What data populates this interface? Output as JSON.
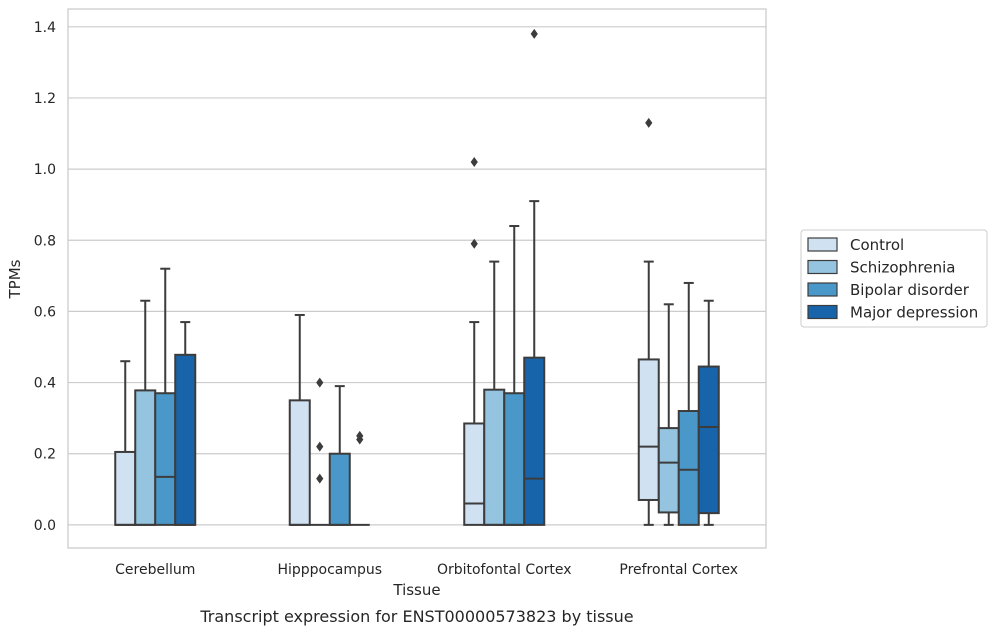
{
  "chart_data": {
    "type": "box",
    "caption": "Transcript expression for ENST00000573823 by tissue",
    "xlabel": "Tissue",
    "ylabel": "TPMs",
    "ylim": [
      -0.065,
      1.45
    ],
    "yticks": [
      0.0,
      0.2,
      0.4,
      0.6,
      0.8,
      1.0,
      1.2,
      1.4
    ],
    "ytick_labels": [
      "0.0",
      "0.2",
      "0.4",
      "0.6",
      "0.8",
      "1.0",
      "1.2",
      "1.4"
    ],
    "grid": true,
    "legend_placement": "right",
    "categories": [
      "Cerebellum",
      "Hipppocampus",
      "Orbitofontal Cortex",
      "Prefrontal Cortex"
    ],
    "series": [
      {
        "name": "Control",
        "color": "#d0e1f2",
        "boxes": [
          {
            "q1": 0.0,
            "median": 0.0,
            "q3": 0.205,
            "whisker_low": 0.0,
            "whisker_high": 0.46,
            "outliers": []
          },
          {
            "q1": 0.0,
            "median": 0.0,
            "q3": 0.35,
            "whisker_low": 0.0,
            "whisker_high": 0.59,
            "outliers": []
          },
          {
            "q1": 0.0,
            "median": 0.06,
            "q3": 0.285,
            "whisker_low": 0.0,
            "whisker_high": 0.57,
            "outliers": [
              0.79,
              1.02
            ]
          },
          {
            "q1": 0.07,
            "median": 0.22,
            "q3": 0.465,
            "whisker_low": 0.0,
            "whisker_high": 0.74,
            "outliers": [
              1.13
            ]
          }
        ]
      },
      {
        "name": "Schizophrenia",
        "color": "#94c4df",
        "boxes": [
          {
            "q1": 0.0,
            "median": 0.0,
            "q3": 0.378,
            "whisker_low": 0.0,
            "whisker_high": 0.63,
            "outliers": []
          },
          {
            "q1": 0.0,
            "median": 0.0,
            "q3": 0.0,
            "whisker_low": 0.0,
            "whisker_high": 0.0,
            "outliers": [
              0.13,
              0.22,
              0.4
            ]
          },
          {
            "q1": 0.0,
            "median": 0.0,
            "q3": 0.38,
            "whisker_low": 0.0,
            "whisker_high": 0.74,
            "outliers": []
          },
          {
            "q1": 0.035,
            "median": 0.175,
            "q3": 0.272,
            "whisker_low": 0.0,
            "whisker_high": 0.62,
            "outliers": []
          }
        ]
      },
      {
        "name": "Bipolar disorder",
        "color": "#4a98c9",
        "boxes": [
          {
            "q1": 0.0,
            "median": 0.135,
            "q3": 0.37,
            "whisker_low": 0.0,
            "whisker_high": 0.72,
            "outliers": []
          },
          {
            "q1": 0.0,
            "median": 0.0,
            "q3": 0.2,
            "whisker_low": 0.0,
            "whisker_high": 0.39,
            "outliers": []
          },
          {
            "q1": 0.0,
            "median": 0.0,
            "q3": 0.37,
            "whisker_low": 0.0,
            "whisker_high": 0.84,
            "outliers": []
          },
          {
            "q1": 0.0,
            "median": 0.155,
            "q3": 0.32,
            "whisker_low": 0.0,
            "whisker_high": 0.68,
            "outliers": []
          }
        ]
      },
      {
        "name": "Major depression",
        "color": "#1764ab",
        "boxes": [
          {
            "q1": 0.0,
            "median": 0.0,
            "q3": 0.478,
            "whisker_low": 0.0,
            "whisker_high": 0.57,
            "outliers": []
          },
          {
            "q1": 0.0,
            "median": 0.0,
            "q3": 0.0,
            "whisker_low": 0.0,
            "whisker_high": 0.0,
            "outliers": [
              0.24,
              0.25
            ]
          },
          {
            "q1": 0.0,
            "median": 0.13,
            "q3": 0.47,
            "whisker_low": 0.0,
            "whisker_high": 0.91,
            "outliers": [
              1.38
            ]
          },
          {
            "q1": 0.033,
            "median": 0.275,
            "q3": 0.445,
            "whisker_low": 0.0,
            "whisker_high": 0.63,
            "outliers": []
          }
        ]
      }
    ]
  }
}
